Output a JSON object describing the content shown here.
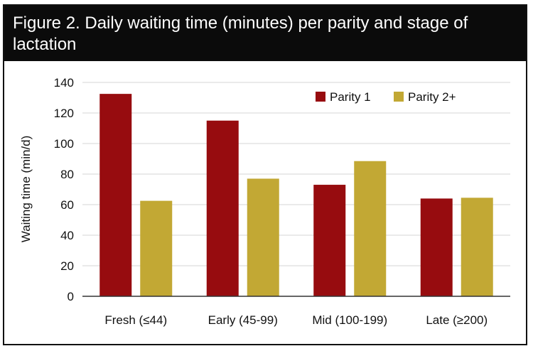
{
  "chart_data": {
    "type": "bar",
    "title": "Figure 2. Daily waiting time (minutes) per parity and stage of lactation",
    "xlabel": "",
    "ylabel": "Waiting time (min/d)",
    "ylim": [
      0,
      140
    ],
    "yticks": [
      0,
      20,
      40,
      60,
      80,
      100,
      120,
      140
    ],
    "grid": true,
    "legend_position": "top-right",
    "categories": [
      "Fresh (≤44)",
      "Early (45-99)",
      "Mid (100-199)",
      "Late (≥200)"
    ],
    "series": [
      {
        "name": "Parity 1",
        "color": "#970c0f",
        "values": [
          132.5,
          115,
          73,
          64
        ]
      },
      {
        "name": "Parity 2+",
        "color": "#c2a834",
        "values": [
          62.5,
          77,
          88.5,
          64.5
        ]
      }
    ]
  }
}
